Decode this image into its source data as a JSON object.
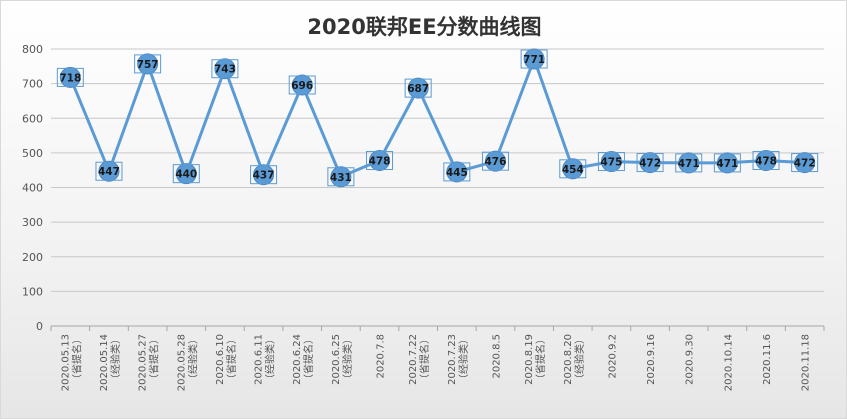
{
  "chart_data": {
    "type": "line",
    "title": "2020联邦EE分数曲线图",
    "xlabel": "",
    "ylabel": "",
    "ylim": [
      0,
      800
    ],
    "yticks": [
      0,
      100,
      200,
      300,
      400,
      500,
      600,
      700,
      800
    ],
    "grid": true,
    "legend": "none",
    "categories": [
      "2020.05.13\n（省提名）",
      "2020.05.14\n（经验类）",
      "2020.05.27\n（省提名）",
      "2020.05.28\n（经验类）",
      "2020.6.10\n（省提名）",
      "2020.6.11\n（经验类）",
      "2020.6.24\n（省提名）",
      "2020.6.25\n（经验类）",
      "2020.7.8",
      "2020.7.22\n（省提名）",
      "2020.7.23\n（经验类）",
      "2020.8.5",
      "2020.8.19\n（省提名）",
      "2020.8.20\n（经验类）",
      "2020.9.2",
      "2020.9.16",
      "2020.9.30",
      "2020.10.14",
      "2020.11.6",
      "2020.11.18"
    ],
    "series": [
      {
        "values": [
          718,
          447,
          757,
          440,
          743,
          437,
          696,
          431,
          478,
          687,
          445,
          476,
          771,
          454,
          475,
          472,
          471,
          471,
          478,
          472
        ]
      }
    ],
    "colors": {
      "line": "#5b9bd5",
      "marker": "#5b9bd5",
      "gridline": "#c8c8c8",
      "label_box": "#5b9bd5"
    }
  }
}
